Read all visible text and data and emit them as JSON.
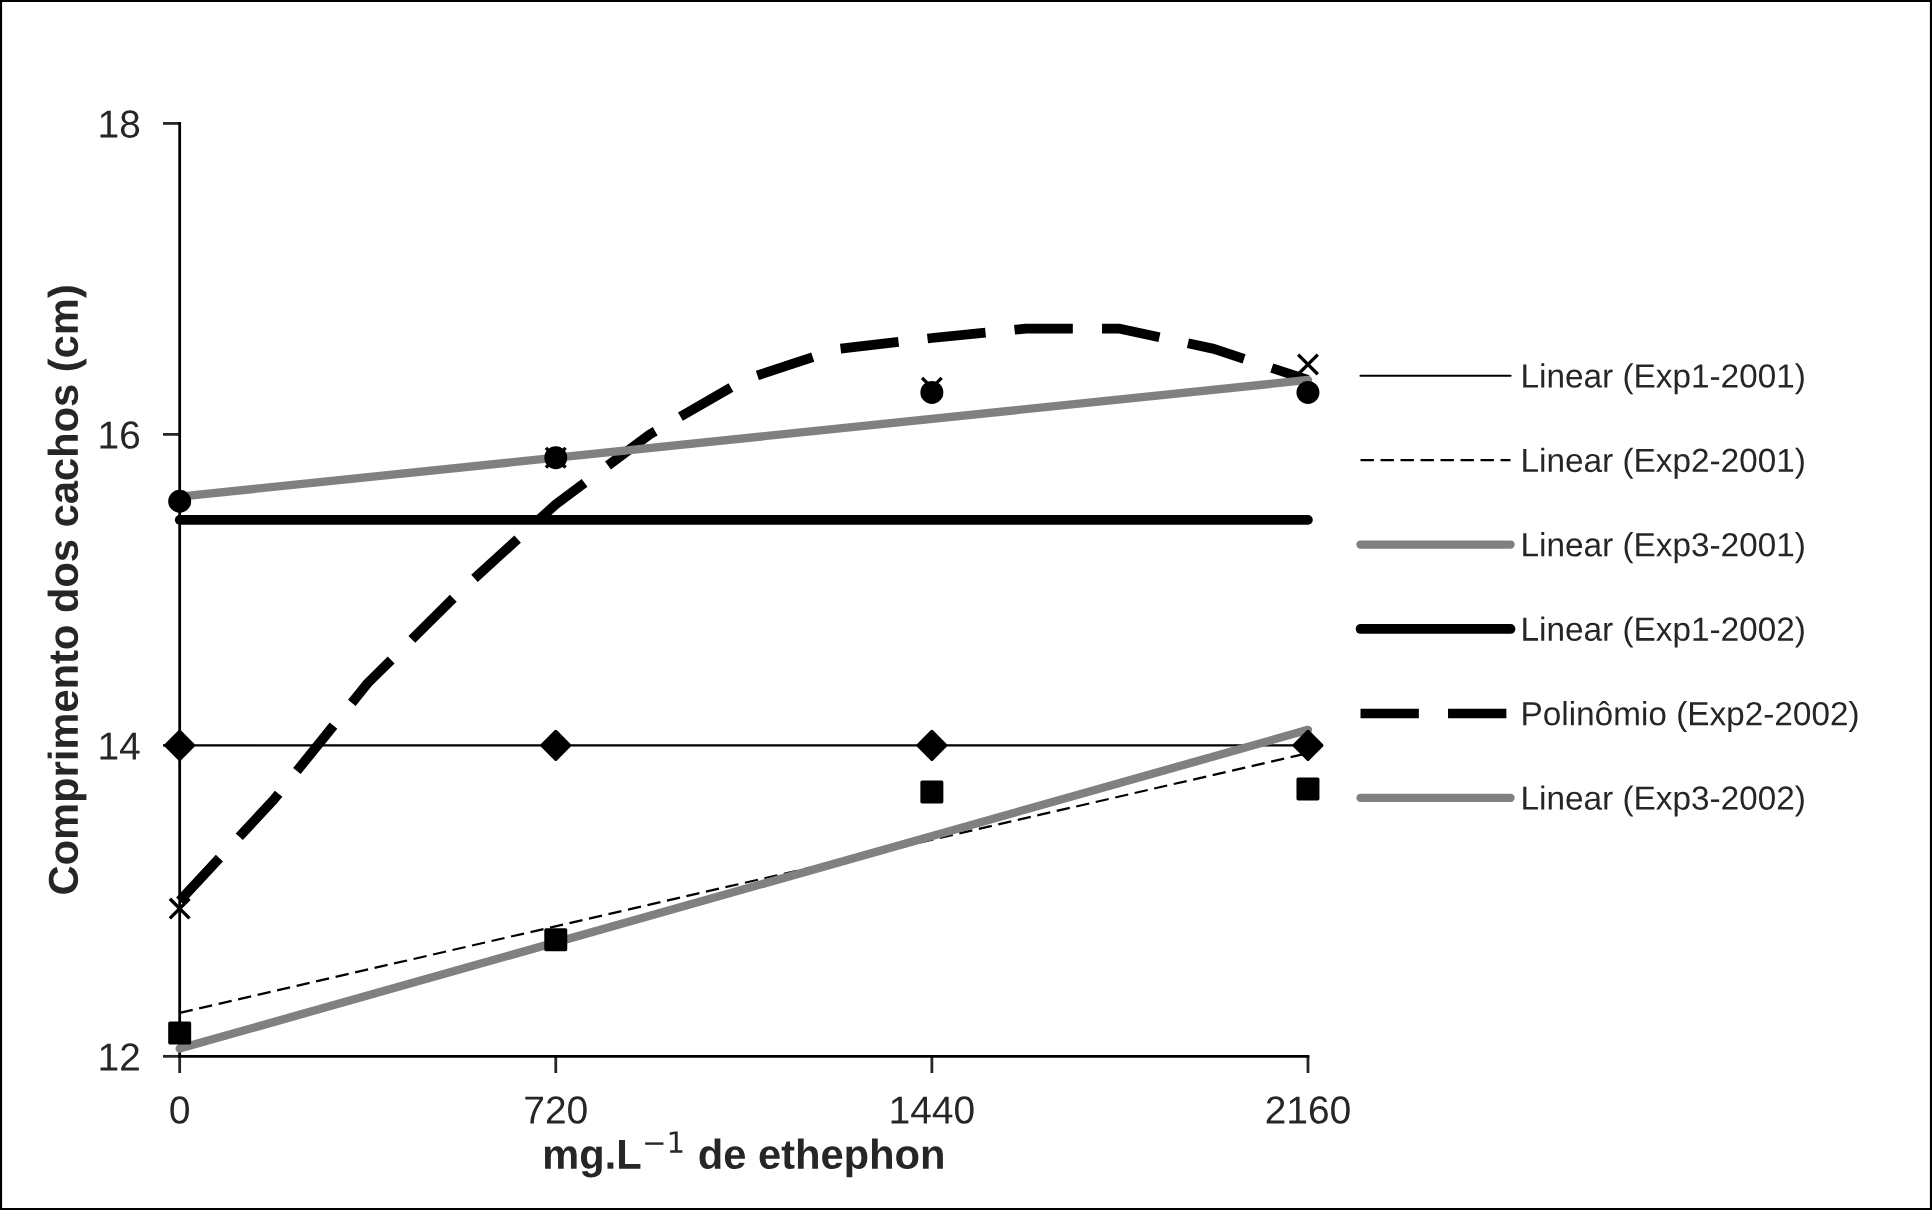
{
  "chart_data": {
    "type": "scatter",
    "xlabel": "mg.L$^{−1}$ de ethephon",
    "ylabel": "Comprimento dos cachos (cm)",
    "x": [
      0,
      720,
      1440,
      2160
    ],
    "xlim": [
      0,
      2160
    ],
    "xticks": [
      0,
      720,
      1440,
      2160
    ],
    "ylim": [
      12,
      18
    ],
    "yticks": [
      12,
      14,
      16,
      18
    ],
    "grid": false,
    "legend": "right",
    "series": [
      {
        "marker": "diamond",
        "color": "#000000",
        "values": [
          14,
          14,
          14,
          14
        ]
      },
      {
        "marker": "square",
        "color": "#000000",
        "values": [
          12.15,
          12.75,
          13.7,
          13.72
        ]
      },
      {
        "marker": "circle",
        "color": "#000000",
        "values": [
          15.57,
          15.85,
          16.27,
          16.27
        ]
      },
      {
        "marker": "cross",
        "color": "#000000",
        "values": [
          12.95,
          15.85,
          16.3,
          16.45
        ]
      },
      {
        "type": "line",
        "name": "Linear (Exp1-2001)",
        "color": "#000000",
        "line_style": "solid",
        "x": [
          0,
          2160
        ],
        "values": [
          14,
          14
        ]
      },
      {
        "type": "line",
        "name": "Linear (Exp2-2001)",
        "color": "#000000",
        "line_style": "dashed",
        "x": [
          0,
          2160
        ],
        "values": [
          12.28,
          13.95
        ]
      },
      {
        "type": "line",
        "name": "Linear (Exp3-2001)",
        "color": "#808080",
        "line_style": "solid",
        "x": [
          0,
          2160
        ],
        "values": [
          12.05,
          14.1
        ]
      },
      {
        "type": "line",
        "name": "Linear (Exp1-2002)",
        "color": "#000000",
        "line_style": "solid",
        "x": [
          0,
          2160
        ],
        "values": [
          15.45,
          15.45
        ]
      },
      {
        "type": "line",
        "name": "Polinômio (Exp2-2002)",
        "color": "#000000",
        "line_style": "dashed",
        "x": [
          0,
          180,
          360,
          540,
          720,
          900,
          1080,
          1260,
          1440,
          1620,
          1800,
          1980,
          2160
        ],
        "values": [
          13.0,
          13.65,
          14.4,
          15.0,
          15.55,
          16.0,
          16.35,
          16.55,
          16.62,
          16.68,
          16.68,
          16.55,
          16.35
        ]
      },
      {
        "type": "line",
        "name": "Linear (Exp3-2002)",
        "color": "#808080",
        "line_style": "solid",
        "x": [
          0,
          2160
        ],
        "values": [
          15.6,
          16.35
        ]
      }
    ]
  }
}
